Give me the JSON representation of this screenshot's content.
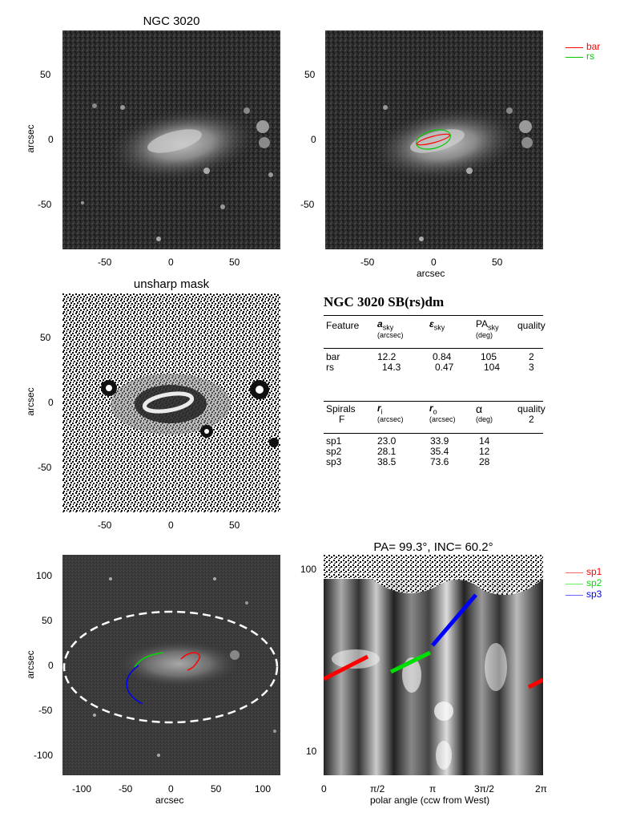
{
  "panel1": {
    "title": "NGC 3020",
    "ylabel": "arcsec",
    "xticks": [
      "-50",
      "0",
      "50"
    ],
    "yticks": [
      "50",
      "0",
      "-50"
    ]
  },
  "panel2": {
    "xlabel": "arcsec",
    "xticks": [
      "-50",
      "0",
      "50"
    ],
    "yticks": [
      "50",
      "0",
      "-50"
    ],
    "legend": [
      {
        "label": "bar",
        "color": "#ff0000"
      },
      {
        "label": "rs",
        "color": "#00cc00"
      }
    ]
  },
  "panel3": {
    "title": "unsharp mask",
    "ylabel": "arcsec",
    "xticks": [
      "-50",
      "0",
      "50"
    ],
    "yticks": [
      "50",
      "0",
      "-50"
    ]
  },
  "table": {
    "heading": "NGC 3020  SB(rs)dm",
    "features_header": {
      "feature": "Feature",
      "a": "a",
      "a_sub": "sky",
      "a_unit": "(arcsec)",
      "eps": "ε",
      "eps_sub": "sky",
      "pa": "PA",
      "pa_sub": "sky",
      "pa_unit": "(deg)",
      "quality": "quality"
    },
    "features": [
      {
        "name": "bar",
        "a": "12.2",
        "eps": "0.84",
        "pa": "105",
        "q": "2"
      },
      {
        "name": "rs",
        "a": "14.3",
        "eps": "0.47",
        "pa": "104",
        "q": "3"
      }
    ],
    "spirals_header": {
      "spirals": "Spirals",
      "class": "F",
      "ri": "r",
      "ri_sub": "i",
      "ri_unit": "(arcsec)",
      "ro": "r",
      "ro_sub": "o",
      "ro_unit": "(arcsec)",
      "alpha": "α",
      "alpha_unit": "(deg)",
      "quality": "quality",
      "quality_val": "2"
    },
    "spirals": [
      {
        "name": "sp1",
        "ri": "23.0",
        "ro": "33.9",
        "alpha": "14"
      },
      {
        "name": "sp2",
        "ri": "28.1",
        "ro": "35.4",
        "alpha": "12"
      },
      {
        "name": "sp3",
        "ri": "38.5",
        "ro": "73.6",
        "alpha": "28"
      }
    ]
  },
  "panel5": {
    "xlabel": "arcsec",
    "ylabel": "arcsec",
    "xticks": [
      "-100",
      "-50",
      "0",
      "50",
      "100"
    ],
    "yticks": [
      "100",
      "50",
      "0",
      "-50",
      "-100"
    ]
  },
  "panel6": {
    "title": "PA=  99.3°, INC=  60.2°",
    "xlabel": "polar angle (ccw from West)",
    "xticks": [
      "0",
      "π/2",
      "π",
      "3π/2",
      "2π"
    ],
    "yticks": [
      "100",
      "10"
    ],
    "legend": [
      {
        "label": "sp1",
        "color": "#ff0000"
      },
      {
        "label": "sp2",
        "color": "#00dd00"
      },
      {
        "label": "sp3",
        "color": "#0000ff"
      }
    ]
  },
  "colors": {
    "bar": "#ff0000",
    "rs": "#00cc00",
    "sp1": "#ff0000",
    "sp2": "#00dd00",
    "sp3": "#0000ff"
  }
}
